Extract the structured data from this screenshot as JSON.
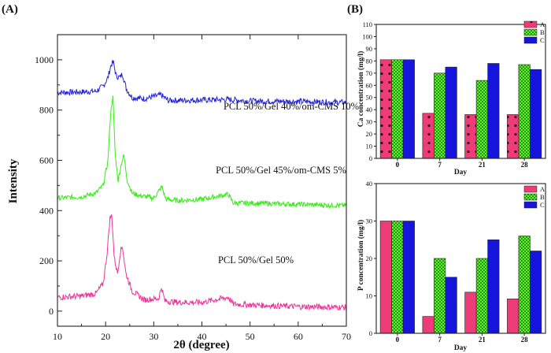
{
  "chart_data": [
    {
      "panel": "(A)",
      "type": "line",
      "xlabel": "2θ (degree)",
      "ylabel": "Intensity",
      "xlim": [
        10,
        70
      ],
      "ylim": [
        -60,
        1100
      ],
      "xticks": [
        10,
        20,
        30,
        40,
        50,
        60,
        70
      ],
      "yticks": [
        0,
        200,
        400,
        600,
        800,
        1000
      ],
      "series": [
        {
          "name": "PCL 50%/Gel 40%/om-CMS 10%",
          "color": "#2222dd",
          "baseline": 870,
          "end_baseline": 830,
          "noise": 12,
          "x": [
            10,
            15,
            18,
            19.5,
            20.5,
            21.1,
            21.6,
            22.2,
            23.0,
            23.5,
            24.3,
            25.5,
            28,
            31.5,
            33,
            40,
            45.5,
            50,
            60,
            70
          ],
          "y": [
            870,
            872,
            875,
            895,
            930,
            978,
            992,
            935,
            930,
            945,
            885,
            850,
            845,
            860,
            838,
            840,
            842,
            836,
            834,
            830
          ]
        },
        {
          "name": "PCL 50%/Gel 45%/om-CMS 5%",
          "color": "#33ee11",
          "baseline": 450,
          "end_baseline": 420,
          "noise": 10,
          "x": [
            10,
            15,
            18,
            19.5,
            20.5,
            21.0,
            21.5,
            22.0,
            22.6,
            23.3,
            23.8,
            24.5,
            25.5,
            27,
            30,
            31.7,
            32.5,
            35,
            40,
            45.5,
            46.5,
            50,
            60,
            70
          ],
          "y": [
            450,
            455,
            470,
            500,
            600,
            780,
            860,
            620,
            520,
            590,
            620,
            520,
            470,
            460,
            450,
            495,
            445,
            440,
            445,
            465,
            430,
            430,
            425,
            420
          ],
          "value_label_anchor": null
        },
        {
          "name": "PCL 50%/Gel 50%",
          "color": "#ee3399",
          "baseline": 55,
          "end_baseline": 15,
          "noise": 12,
          "x": [
            10,
            15,
            18,
            19.5,
            20.3,
            20.9,
            21.3,
            21.8,
            22.5,
            23.0,
            23.5,
            24.2,
            25.5,
            28,
            31.0,
            31.6,
            32.3,
            35,
            40,
            45.5,
            46.5,
            50,
            60,
            70
          ],
          "y": [
            55,
            60,
            70,
            110,
            230,
            370,
            380,
            210,
            150,
            230,
            260,
            150,
            80,
            45,
            50,
            95,
            40,
            35,
            35,
            55,
            28,
            25,
            18,
            15
          ]
        }
      ]
    },
    {
      "panel": "(B)",
      "type": "bar",
      "ylabel": "Ca concentration (mg/l)",
      "xlabel": "Day",
      "categories": [
        "0",
        "7",
        "21",
        "28"
      ],
      "ylim": [
        0,
        110
      ],
      "yticks": [
        0,
        10,
        20,
        30,
        40,
        50,
        60,
        70,
        80,
        90,
        100,
        110
      ],
      "series": [
        {
          "name": "A",
          "color": "#ee3c78",
          "values": [
            81,
            37,
            36,
            36
          ]
        },
        {
          "name": "B",
          "color": "#55ee22",
          "values": [
            81,
            70,
            64,
            77
          ]
        },
        {
          "name": "C",
          "color": "#1515dd",
          "values": [
            81,
            75,
            78,
            73
          ]
        }
      ]
    },
    {
      "panel": "",
      "type": "bar",
      "ylabel": "P concentration (mg/l)",
      "xlabel": "Day",
      "categories": [
        "0",
        "7",
        "21",
        "28"
      ],
      "ylim": [
        0,
        40
      ],
      "yticks": [
        0,
        10,
        20,
        30,
        40
      ],
      "series": [
        {
          "name": "A",
          "color": "#ee3c78",
          "values": [
            30,
            4.5,
            11,
            9.2
          ]
        },
        {
          "name": "B",
          "color": "#55ee22",
          "values": [
            30,
            20,
            20,
            26
          ]
        },
        {
          "name": "C",
          "color": "#1515dd",
          "values": [
            30,
            15,
            25,
            22
          ]
        }
      ]
    }
  ]
}
